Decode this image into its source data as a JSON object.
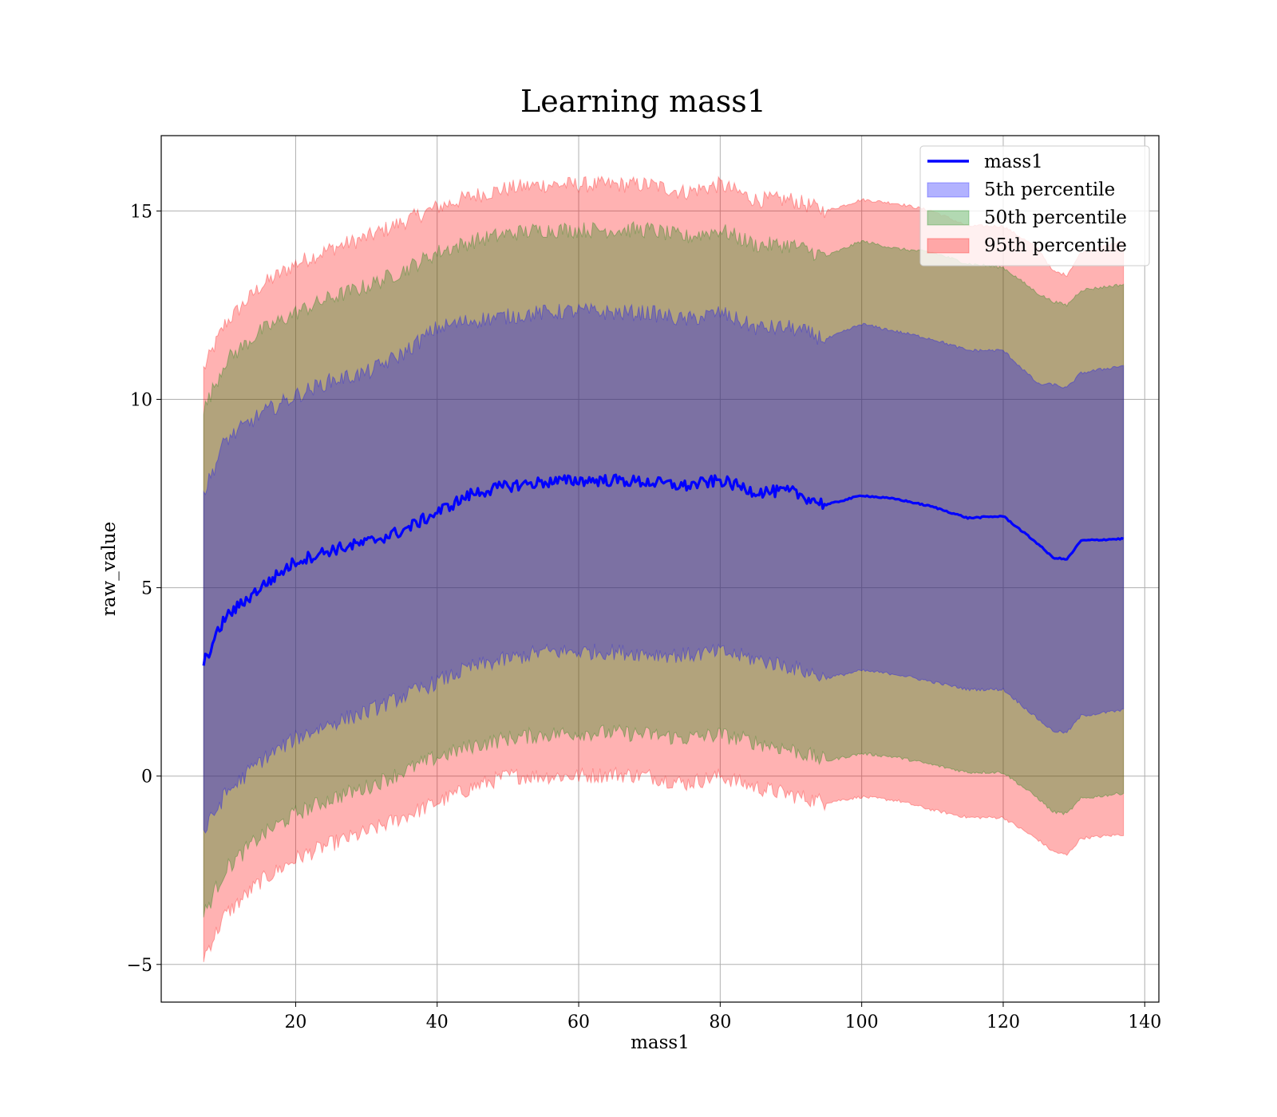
{
  "chart_data": {
    "type": "area",
    "title": "Learning mass1",
    "xlabel": "mass1",
    "ylabel": "raw_value",
    "xlim": [
      1,
      142
    ],
    "ylim": [
      -6,
      17
    ],
    "x_ticks": [
      20,
      40,
      60,
      80,
      100,
      120,
      140
    ],
    "x_tick_labels": [
      "20",
      "40",
      "60",
      "80",
      "100",
      "120",
      "140"
    ],
    "y_ticks": [
      -5,
      0,
      5,
      10,
      15
    ],
    "y_tick_labels": [
      "−5",
      "0",
      "5",
      "10",
      "15"
    ],
    "grid": true,
    "legend_position": "top-right",
    "legend": [
      {
        "label": "mass1",
        "kind": "line",
        "color": "#0000ff"
      },
      {
        "label": "5th percentile",
        "kind": "patch",
        "color": "#0000ff"
      },
      {
        "label": "50th percentile",
        "kind": "patch",
        "color": "#008000"
      },
      {
        "label": "95th percentile",
        "kind": "patch",
        "color": "#ff0000"
      }
    ],
    "x": [
      7,
      10,
      15,
      20,
      25,
      30,
      35,
      40,
      45,
      50,
      55,
      60,
      65,
      70,
      75,
      80,
      85,
      90,
      95,
      100,
      105,
      110,
      115,
      120,
      125,
      127,
      129,
      131,
      137
    ],
    "series": [
      {
        "name": "mass1",
        "kind": "line",
        "color": "#0000ff",
        "values": [
          3.0,
          4.2,
          5.0,
          5.7,
          6.0,
          6.2,
          6.5,
          7.0,
          7.5,
          7.7,
          7.8,
          7.85,
          7.85,
          7.8,
          7.7,
          7.85,
          7.55,
          7.55,
          7.2,
          7.45,
          7.35,
          7.15,
          6.85,
          6.9,
          6.15,
          5.8,
          5.75,
          6.25,
          6.3
        ]
      },
      {
        "name": "5th percentile",
        "kind": "band",
        "color": "#0000ff",
        "opacity": 0.3,
        "upper": [
          7.5,
          8.9,
          9.6,
          10.1,
          10.5,
          10.7,
          11.2,
          11.9,
          12.1,
          12.2,
          12.3,
          12.35,
          12.3,
          12.3,
          12.1,
          12.3,
          11.9,
          11.9,
          11.6,
          12.0,
          11.8,
          11.6,
          11.3,
          11.3,
          10.4,
          10.4,
          10.3,
          10.7,
          10.9
        ],
        "lower": [
          -1.5,
          -0.5,
          0.4,
          1.0,
          1.4,
          1.7,
          2.1,
          2.5,
          2.9,
          3.1,
          3.3,
          3.3,
          3.3,
          3.25,
          3.2,
          3.3,
          3.1,
          2.9,
          2.6,
          2.8,
          2.7,
          2.5,
          2.3,
          2.3,
          1.5,
          1.2,
          1.15,
          1.6,
          1.75
        ]
      },
      {
        "name": "50th percentile",
        "kind": "band",
        "color": "#008000",
        "opacity": 0.3,
        "upper": [
          9.7,
          11.0,
          11.8,
          12.3,
          12.7,
          13.0,
          13.4,
          13.9,
          14.2,
          14.4,
          14.5,
          14.5,
          14.5,
          14.5,
          14.3,
          14.5,
          14.1,
          14.1,
          13.8,
          14.2,
          14.0,
          13.9,
          13.6,
          13.5,
          12.8,
          12.6,
          12.5,
          12.9,
          13.05
        ]
      },
      {
        "name": "50th percentile lower",
        "kind": "band-lower",
        "lower": [
          -3.7,
          -2.5,
          -1.6,
          -1.0,
          -0.6,
          -0.3,
          0.1,
          0.5,
          0.8,
          1.0,
          1.1,
          1.15,
          1.15,
          1.1,
          1.0,
          1.1,
          0.9,
          0.7,
          0.4,
          0.6,
          0.5,
          0.3,
          0.1,
          0.1,
          -0.6,
          -0.95,
          -1.0,
          -0.6,
          -0.45
        ]
      },
      {
        "name": "95th percentile",
        "kind": "band",
        "color": "#ff0000",
        "opacity": 0.3,
        "upper": [
          10.8,
          12.0,
          13.0,
          13.6,
          14.0,
          14.3,
          14.7,
          15.1,
          15.4,
          15.6,
          15.7,
          15.7,
          15.7,
          15.7,
          15.5,
          15.7,
          15.3,
          15.3,
          15.0,
          15.3,
          15.2,
          15.0,
          14.6,
          14.6,
          14.0,
          13.4,
          13.3,
          13.9,
          14.2
        ],
        "lower": [
          -4.8,
          -3.7,
          -2.8,
          -2.2,
          -1.8,
          -1.5,
          -1.1,
          -0.7,
          -0.3,
          0.0,
          0.0,
          0.0,
          0.05,
          0.0,
          -0.2,
          0.0,
          -0.3,
          -0.5,
          -0.7,
          -0.55,
          -0.65,
          -0.9,
          -1.1,
          -1.1,
          -1.7,
          -2.0,
          -2.1,
          -1.65,
          -1.55
        ]
      }
    ]
  }
}
